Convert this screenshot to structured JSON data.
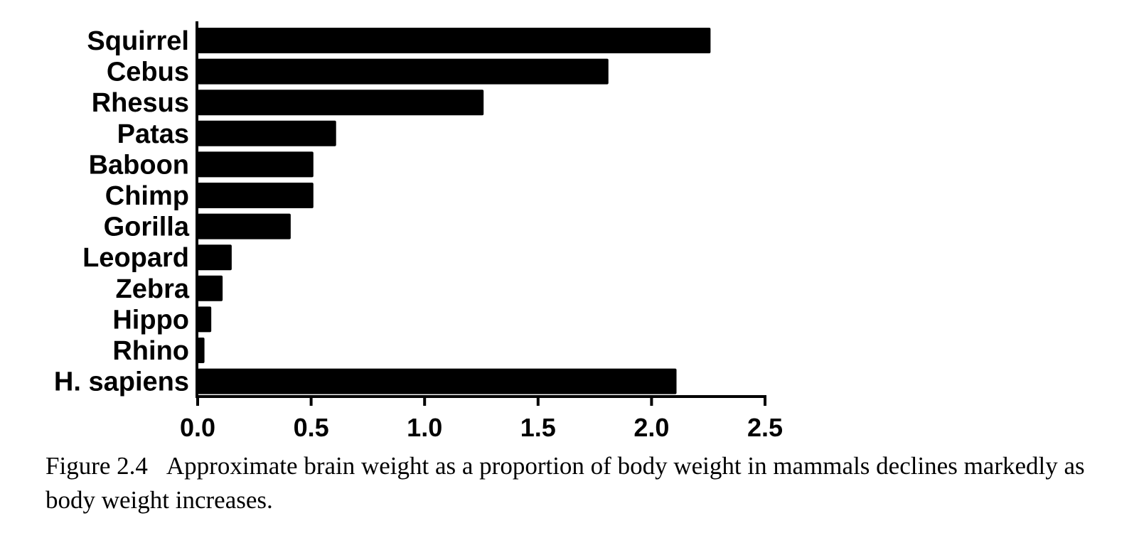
{
  "chart_data": {
    "type": "bar",
    "orientation": "horizontal",
    "categories": [
      "Squirrel",
      "Cebus",
      "Rhesus",
      "Patas",
      "Baboon",
      "Chimp",
      "Gorilla",
      "Leopard",
      "Zebra",
      "Hippo",
      "Rhino",
      "H. sapiens"
    ],
    "values": [
      2.26,
      1.81,
      1.26,
      0.61,
      0.51,
      0.51,
      0.41,
      0.15,
      0.11,
      0.06,
      0.03,
      2.11
    ],
    "xlim": [
      0,
      2.5
    ],
    "xticks": [
      "0.0",
      "0.5",
      "1.0",
      "1.5",
      "2.0",
      "2.5"
    ],
    "grid": false,
    "bar_color": "#000000"
  },
  "caption": {
    "figure_number": "Figure 2.4",
    "text": "Approximate brain weight as a proportion of body weight in mammals declines markedly as body weight increases."
  }
}
